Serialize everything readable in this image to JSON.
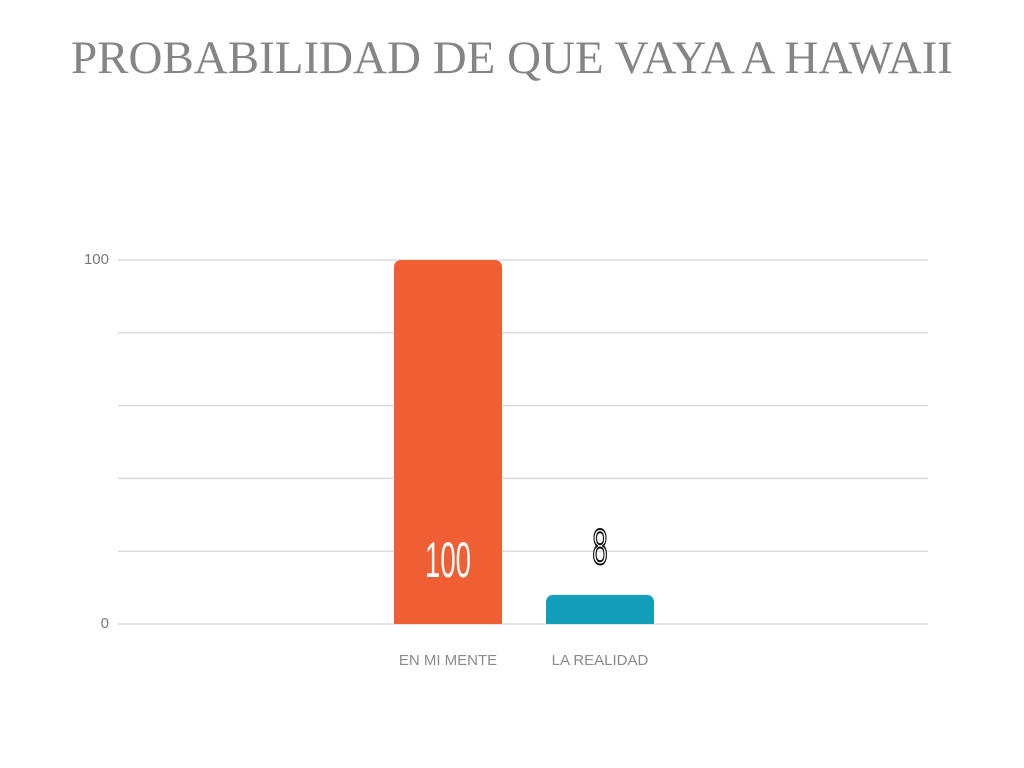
{
  "chart_data": {
    "type": "bar",
    "title": "PROBABILIDAD DE QUE VAYA A HAWAII",
    "categories": [
      "EN MI MENTE",
      "LA REALIDAD"
    ],
    "values": [
      100,
      8
    ],
    "colors": [
      "#f05f33",
      "#139eba"
    ],
    "ylim": [
      0,
      100
    ],
    "yticks": [
      0,
      100
    ],
    "gridlines": [
      0,
      20,
      40,
      60,
      80,
      100
    ],
    "grid": true
  }
}
